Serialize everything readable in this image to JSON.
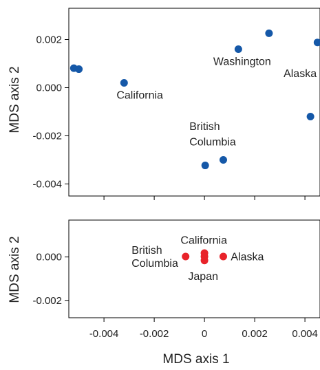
{
  "chart_data": [
    {
      "type": "scatter",
      "ylabel": "MDS axis 2",
      "xlim": [
        -0.0054,
        0.0046
      ],
      "ylim": [
        -0.0045,
        0.0033
      ],
      "yticks": [
        0.002,
        0.0,
        -0.002,
        -0.004
      ],
      "ytick_labels": [
        "0.002",
        "0.000",
        "-0.002",
        "-0.004"
      ],
      "xticks": [
        -0.004,
        -0.002,
        0.0,
        0.002,
        0.004
      ],
      "color": "#1558a8",
      "points": [
        {
          "x": -0.0052,
          "y": 0.00081
        },
        {
          "x": -0.005,
          "y": 0.00077
        },
        {
          "x": -0.0032,
          "y": 0.0002
        },
        {
          "x": 0.00135,
          "y": 0.0016
        },
        {
          "x": 0.00257,
          "y": 0.00226
        },
        {
          "x": 0.0045,
          "y": 0.00188
        },
        {
          "x": 0.00422,
          "y": -0.0012
        },
        {
          "x": 0.00075,
          "y": -0.003
        },
        {
          "x": 3e-05,
          "y": -0.00323
        }
      ],
      "annotations": [
        {
          "text": "California",
          "x": -0.0035,
          "y": -0.00045
        },
        {
          "text": "Washington",
          "x": 0.00035,
          "y": 0.00095
        },
        {
          "text": "Alaska",
          "x": 0.00315,
          "y": 0.00045
        },
        {
          "text": "British",
          "x": -0.0006,
          "y": -0.00175
        },
        {
          "text": "Columbia",
          "x": -0.0006,
          "y": -0.0024
        }
      ]
    },
    {
      "type": "scatter",
      "ylabel": "MDS axis 2",
      "xlabel": "MDS axis 1",
      "xlim": [
        -0.0054,
        0.0046
      ],
      "ylim": [
        -0.0028,
        0.0017
      ],
      "yticks": [
        0.0,
        -0.002
      ],
      "ytick_labels": [
        "0.000",
        "-0.002"
      ],
      "xticks": [
        -0.004,
        -0.002,
        0.0,
        0.002,
        0.004
      ],
      "xtick_labels": [
        "-0.004",
        "-0.002",
        "0",
        "0.002",
        "0.004"
      ],
      "color": "#e8232a",
      "points": [
        {
          "x": -0.00075,
          "y": 2e-05
        },
        {
          "x": 0.0,
          "y": 0.00018
        },
        {
          "x": 0.0,
          "y": 2e-05
        },
        {
          "x": 0.0,
          "y": -0.00016
        },
        {
          "x": 0.00075,
          "y": 2e-05
        }
      ],
      "annotations": [
        {
          "text": "California",
          "x": -0.00095,
          "y": 0.0006
        },
        {
          "text": "British",
          "x": -0.0029,
          "y": 0.00015
        },
        {
          "text": "Columbia",
          "x": -0.0029,
          "y": -0.00045
        },
        {
          "text": "Alaska",
          "x": 0.00105,
          "y": -0.00015
        },
        {
          "text": "Japan",
          "x": -0.00065,
          "y": -0.00105
        }
      ]
    }
  ]
}
